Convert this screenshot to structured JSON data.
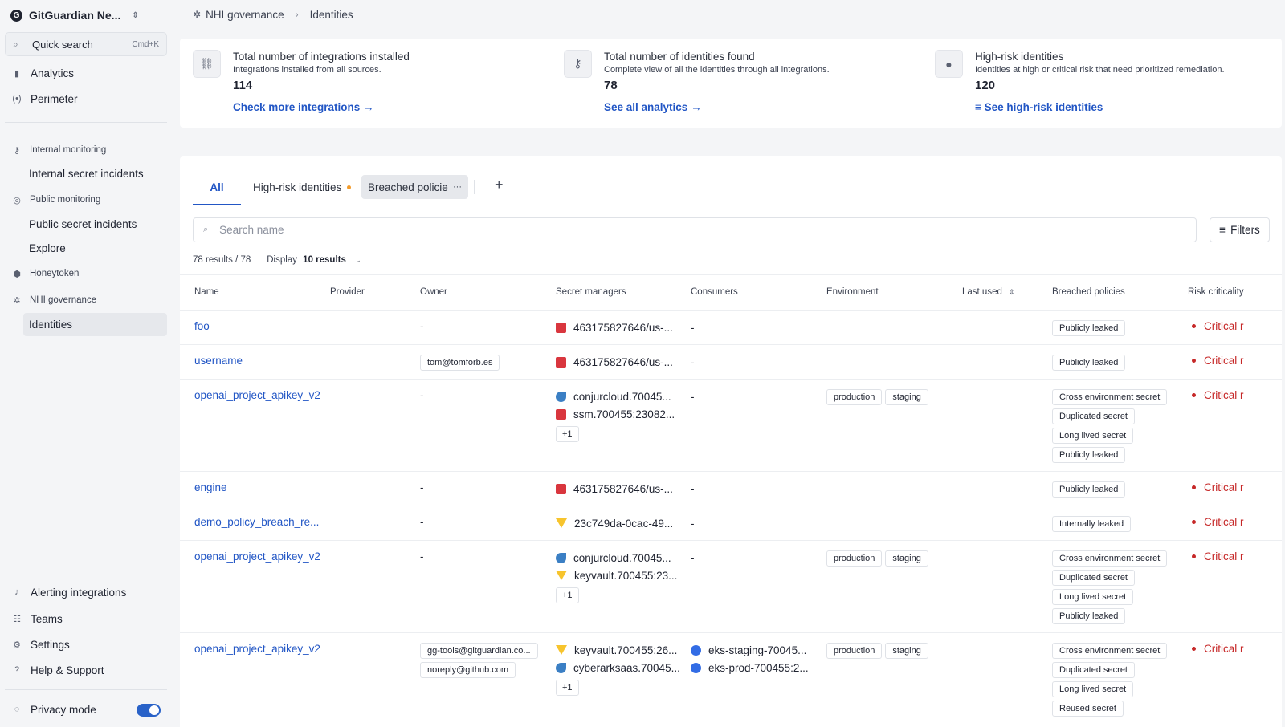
{
  "sidebar": {
    "org_name": "GitGuardian Ne...",
    "org_initial": "G",
    "quick_search": "Quick search",
    "quick_kbd": "Cmd+K",
    "analytics": "Analytics",
    "perimeter": "Perimeter",
    "internal_monitoring": "Internal monitoring",
    "internal_secret_incidents": "Internal secret incidents",
    "public_monitoring": "Public monitoring",
    "public_secret_incidents": "Public secret incidents",
    "explore": "Explore",
    "honeytoken": "Honeytoken",
    "nhi_governance": "NHI governance",
    "identities": "Identities",
    "alerting_integrations": "Alerting integrations",
    "teams": "Teams",
    "settings": "Settings",
    "help_support": "Help & Support",
    "privacy_mode": "Privacy mode"
  },
  "breadcrumb": {
    "parent": "NHI governance",
    "current": "Identities"
  },
  "stats": [
    {
      "title": "Total number of integrations installed",
      "desc": "Integrations installed from all sources.",
      "value": "114",
      "link": "Check more integrations →"
    },
    {
      "title": "Total number of identities found",
      "desc": "Complete view of all the identities through all integrations.",
      "value": "78",
      "link": "See all analytics →"
    },
    {
      "title": "High-risk identities",
      "desc": "Identities at high or critical risk that need prioritized remediation.",
      "value": "120",
      "link": "See high-risk identities"
    }
  ],
  "tabs": {
    "all": "All",
    "high_risk": "High-risk identities",
    "breached": "Breached policies",
    "add": "+"
  },
  "search": {
    "placeholder": "Search name",
    "filters": "Filters"
  },
  "results": {
    "count": "78 results",
    "total": "78",
    "display_label": "Display",
    "display_value": "10 results"
  },
  "table": {
    "headers": [
      "Name",
      "Provider",
      "Owner",
      "Secret managers",
      "Consumers",
      "Environment",
      "Last used",
      "Breached policies",
      "Risk criticality"
    ],
    "rows": [
      {
        "name": "foo",
        "owner": [
          "-"
        ],
        "secret_managers": [
          {
            "icon": "aws",
            "text": "463175827646/us-..."
          }
        ],
        "consumers": [
          {
            "text": "-"
          }
        ],
        "environment": [],
        "policies": [
          "Publicly leaked"
        ],
        "risk": "Critical r"
      },
      {
        "name": "username",
        "owner": [
          "tom@tomforb.es"
        ],
        "secret_managers": [
          {
            "icon": "aws",
            "text": "463175827646/us-..."
          }
        ],
        "consumers": [
          {
            "text": "-"
          }
        ],
        "environment": [],
        "policies": [
          "Publicly leaked"
        ],
        "risk": "Critical r"
      },
      {
        "name": "openai_project_apikey_v2",
        "owner": [
          "-"
        ],
        "secret_managers": [
          {
            "icon": "conjur",
            "text": "conjurcloud.70045..."
          },
          {
            "icon": "aws",
            "text": "ssm.700455:23082..."
          }
        ],
        "sm_more": "+1",
        "consumers": [
          {
            "text": "-"
          }
        ],
        "environment": [
          "production",
          "staging"
        ],
        "policies": [
          "Cross environment secret",
          "Duplicated secret",
          "Long lived secret",
          "Publicly leaked"
        ],
        "risk": "Critical r"
      },
      {
        "name": "engine",
        "owner": [
          "-"
        ],
        "secret_managers": [
          {
            "icon": "aws",
            "text": "463175827646/us-..."
          }
        ],
        "consumers": [
          {
            "text": "-"
          }
        ],
        "environment": [],
        "policies": [
          "Publicly leaked"
        ],
        "risk": "Critical r"
      },
      {
        "name": "demo_policy_breach_re...",
        "owner": [
          "-"
        ],
        "secret_managers": [
          {
            "icon": "vault",
            "text": "23c749da-0cac-49..."
          }
        ],
        "consumers": [
          {
            "text": "-"
          }
        ],
        "environment": [],
        "policies": [
          "Internally leaked"
        ],
        "risk": "Critical r"
      },
      {
        "name": "openai_project_apikey_v2",
        "owner": [
          "-"
        ],
        "secret_managers": [
          {
            "icon": "conjur",
            "text": "conjurcloud.70045..."
          },
          {
            "icon": "vault",
            "text": "keyvault.700455:23..."
          }
        ],
        "sm_more": "+1",
        "consumers": [
          {
            "text": "-"
          }
        ],
        "environment": [
          "production",
          "staging"
        ],
        "policies": [
          "Cross environment secret",
          "Duplicated secret",
          "Long lived secret",
          "Publicly leaked"
        ],
        "risk": "Critical r"
      },
      {
        "name": "openai_project_apikey_v2",
        "owner": [
          "gg-tools@gitguardian.co...",
          "noreply@github.com"
        ],
        "secret_managers": [
          {
            "icon": "vault",
            "text": "keyvault.700455:26..."
          },
          {
            "icon": "conjur",
            "text": "cyberarksaas.70045..."
          }
        ],
        "sm_more": "+1",
        "consumers": [
          {
            "icon": "k8s",
            "text": "eks-staging-70045..."
          },
          {
            "icon": "k8s",
            "text": "eks-prod-700455:2..."
          }
        ],
        "environment": [
          "production",
          "staging"
        ],
        "policies": [
          "Cross environment secret",
          "Duplicated secret",
          "Long lived secret",
          "Reused secret"
        ],
        "risk": "Critical r"
      }
    ]
  }
}
